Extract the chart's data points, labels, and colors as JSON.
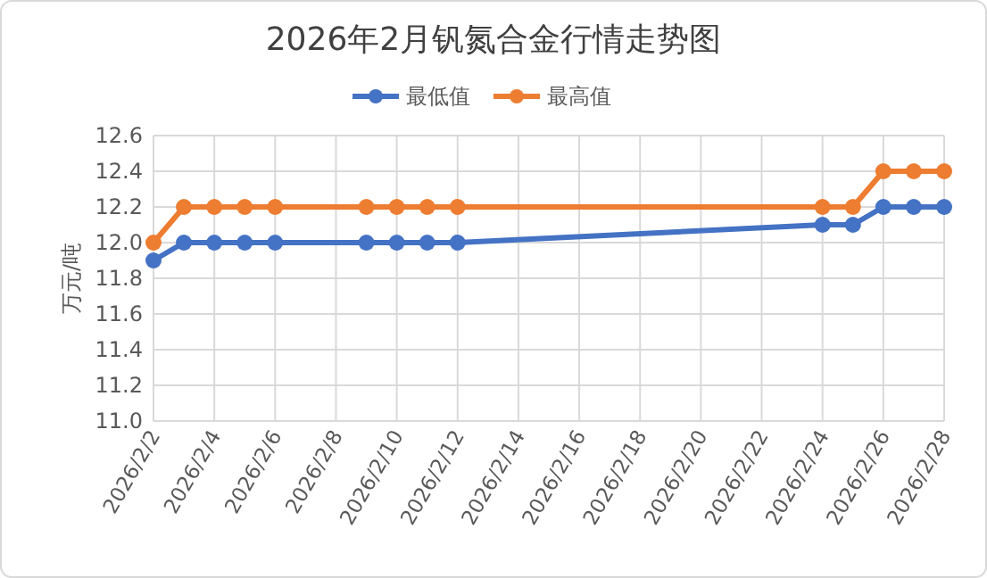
{
  "chart_data": {
    "type": "line",
    "title": "2026年2月钒氮合金行情走势图",
    "ylabel": "万元/吨",
    "x": [
      "2026-02-02",
      "2026-02-03",
      "2026-02-04",
      "2026-02-05",
      "2026-02-06",
      "2026-02-09",
      "2026-02-10",
      "2026-02-11",
      "2026-02-12",
      "2026-02-24",
      "2026-02-25",
      "2026-02-26",
      "2026-02-27",
      "2026-02-28"
    ],
    "series": [
      {
        "name": "最低值",
        "color": "#4472c4",
        "values": [
          11.9,
          12.0,
          12.0,
          12.0,
          12.0,
          12.0,
          12.0,
          12.0,
          12.0,
          12.1,
          12.1,
          12.2,
          12.2,
          12.2
        ]
      },
      {
        "name": "最高值",
        "color": "#ed7d31",
        "values": [
          12.0,
          12.2,
          12.2,
          12.2,
          12.2,
          12.2,
          12.2,
          12.2,
          12.2,
          12.2,
          12.2,
          12.4,
          12.4,
          12.4
        ]
      }
    ],
    "xlim": [
      "2026-02-02",
      "2026-02-28"
    ],
    "xticks": [
      {
        "value": "2026-02-02",
        "label": "2026/2/2"
      },
      {
        "value": "2026-02-04",
        "label": "2026/2/4"
      },
      {
        "value": "2026-02-06",
        "label": "2026/2/6"
      },
      {
        "value": "2026-02-08",
        "label": "2026/2/8"
      },
      {
        "value": "2026-02-10",
        "label": "2026/2/10"
      },
      {
        "value": "2026-02-12",
        "label": "2026/2/12"
      },
      {
        "value": "2026-02-14",
        "label": "2026/2/14"
      },
      {
        "value": "2026-02-16",
        "label": "2026/2/16"
      },
      {
        "value": "2026-02-18",
        "label": "2026/2/18"
      },
      {
        "value": "2026-02-20",
        "label": "2026/2/20"
      },
      {
        "value": "2026-02-22",
        "label": "2026/2/22"
      },
      {
        "value": "2026-02-24",
        "label": "2026/2/24"
      },
      {
        "value": "2026-02-26",
        "label": "2026/2/26"
      },
      {
        "value": "2026-02-28",
        "label": "2026/2/28"
      }
    ],
    "ylim": [
      11.0,
      12.6
    ],
    "yticks": [
      {
        "value": 11.0,
        "label": "11.0"
      },
      {
        "value": 11.2,
        "label": "11.2"
      },
      {
        "value": 11.4,
        "label": "11.4"
      },
      {
        "value": 11.6,
        "label": "11.6"
      },
      {
        "value": 11.8,
        "label": "11.8"
      },
      {
        "value": 12.0,
        "label": "12.0"
      },
      {
        "value": 12.2,
        "label": "12.2"
      },
      {
        "value": 12.4,
        "label": "12.4"
      },
      {
        "value": 12.6,
        "label": "12.6"
      }
    ],
    "grid": true,
    "legend": "top",
    "marker": "circle",
    "line_style": "solid"
  }
}
